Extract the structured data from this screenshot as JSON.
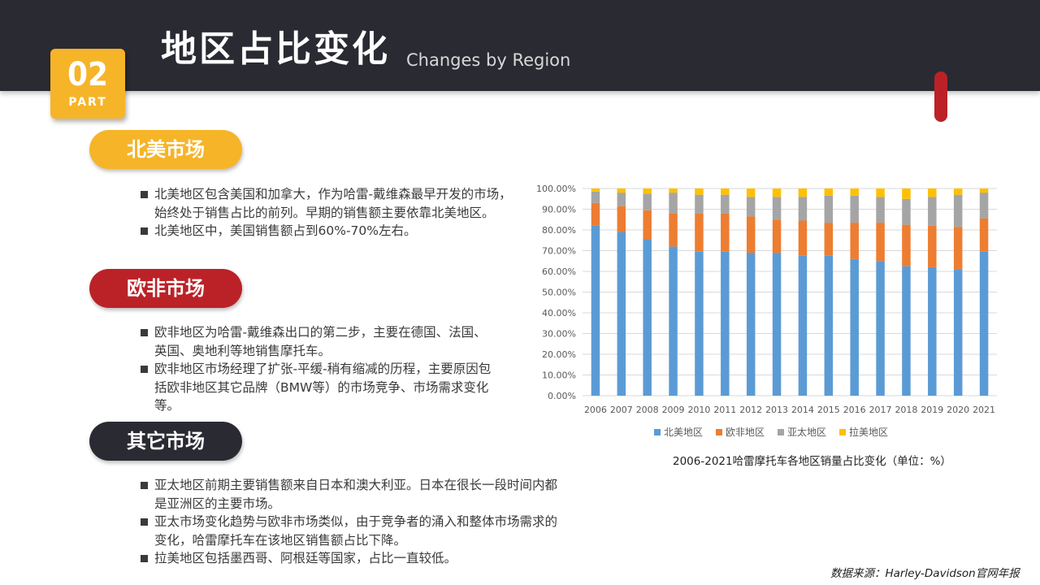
{
  "header": {
    "title": "地区占比变化",
    "subtitle": "Changes by Region",
    "badge_number": "02",
    "badge_label": "PART"
  },
  "sections": [
    {
      "heading": "北美市场",
      "bullets": [
        "北美地区包含美国和加拿大，作为哈雷-戴维森最早开发的市场，始终处于销售占比的前列。早期的销售额主要依靠北美地区。",
        "北美地区中，美国销售额占到60%-70%左右。"
      ]
    },
    {
      "heading": "欧非市场",
      "bullets": [
        "欧非地区为哈雷-戴维森出口的第二步，主要在德国、法国、英国、奥地利等地销售摩托车。",
        "欧非地区市场经理了扩张-平缓-稍有缩减的历程，主要原因包括欧非地区其它品牌（BMW等）的市场竞争、市场需求变化等。"
      ]
    },
    {
      "heading": "其它市场",
      "bullets": [
        "亚太地区前期主要销售额来自日本和澳大利亚。日本在很长一段时间内都是亚洲区的主要市场。",
        "亚太市场变化趋势与欧非市场类似，由于竞争者的涌入和整体市场需求的变化，哈雷摩托车在该地区销售额占比下降。",
        "拉美地区包括墨西哥、阿根廷等国家，占比一直较低。"
      ]
    }
  ],
  "chart_caption": "2006-2021哈雷摩托车各地区销量占比变化（单位：%）",
  "source_note": "数据来源：Harley-Davidson官网年报",
  "colors": {
    "dark": "#2a2a33",
    "yellow": "#f6b428",
    "red": "#bb2228"
  },
  "chart_data": {
    "type": "bar",
    "stacked": true,
    "categories": [
      "2006",
      "2007",
      "2008",
      "2009",
      "2010",
      "2011",
      "2012",
      "2013",
      "2014",
      "2015",
      "2016",
      "2017",
      "2018",
      "2019",
      "2020",
      "2021"
    ],
    "series": [
      {
        "name": "北美地区",
        "color": "#5b9bd5",
        "values": [
          82,
          79,
          75.5,
          72,
          69.5,
          69.5,
          69,
          69,
          67.5,
          67.5,
          66,
          65,
          62.5,
          62,
          61,
          69.5
        ]
      },
      {
        "name": "欧非地区",
        "color": "#ed7d31",
        "values": [
          11,
          12.5,
          14,
          16,
          18.5,
          18.5,
          17.5,
          16,
          17,
          16,
          17.5,
          18.5,
          20,
          20,
          20.5,
          16
        ]
      },
      {
        "name": "亚太地区",
        "color": "#a5a5a5",
        "values": [
          5.5,
          6.5,
          8,
          10,
          9,
          9,
          9.5,
          11,
          11.5,
          13,
          13,
          12.5,
          12.5,
          14,
          15.5,
          12.5
        ]
      },
      {
        "name": "拉美地区",
        "color": "#ffc000",
        "values": [
          1.5,
          2,
          2.5,
          2,
          3,
          3,
          4,
          4,
          4,
          3.5,
          3.5,
          4,
          5,
          4,
          3,
          2
        ]
      }
    ],
    "ylim": [
      0,
      100
    ],
    "yticks": [
      "0.00%",
      "10.00%",
      "20.00%",
      "30.00%",
      "40.00%",
      "50.00%",
      "60.00%",
      "70.00%",
      "80.00%",
      "90.00%",
      "100.00%"
    ],
    "grid": true,
    "legend": "bottom"
  }
}
